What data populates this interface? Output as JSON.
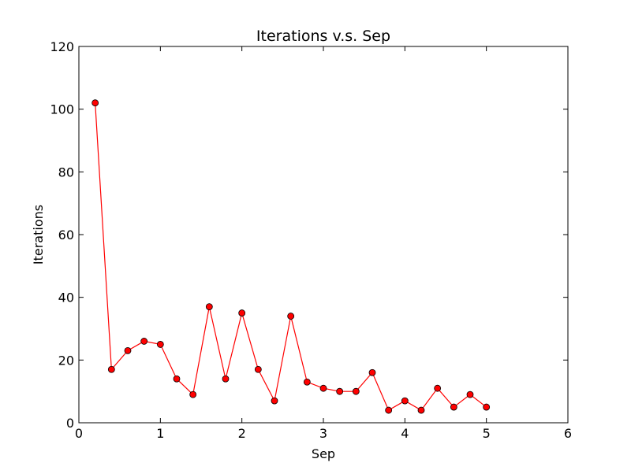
{
  "chart_data": {
    "type": "line",
    "title": "Iterations v.s. Sep",
    "xlabel": "Sep",
    "ylabel": "Iterations",
    "xlim": [
      0,
      6
    ],
    "ylim": [
      0,
      120
    ],
    "xticks": [
      "0",
      "1",
      "2",
      "3",
      "4",
      "5",
      "6"
    ],
    "yticks": [
      "0",
      "20",
      "40",
      "60",
      "80",
      "100",
      "120"
    ],
    "grid": false,
    "series": [
      {
        "color": "#ff0000",
        "marker": "circle",
        "x": [
          0.2,
          0.4,
          0.6,
          0.8,
          1.0,
          1.2,
          1.4,
          1.6,
          1.8,
          2.0,
          2.2,
          2.4,
          2.6,
          2.8,
          3.0,
          3.2,
          3.4,
          3.6,
          3.8,
          4.0,
          4.2,
          4.4,
          4.6,
          4.8,
          5.0
        ],
        "y": [
          102,
          17,
          23,
          26,
          25,
          14,
          9,
          37,
          14,
          35,
          17,
          7,
          34,
          13,
          11,
          10,
          10,
          16,
          4,
          7,
          4,
          11,
          5,
          9,
          5
        ]
      }
    ]
  }
}
